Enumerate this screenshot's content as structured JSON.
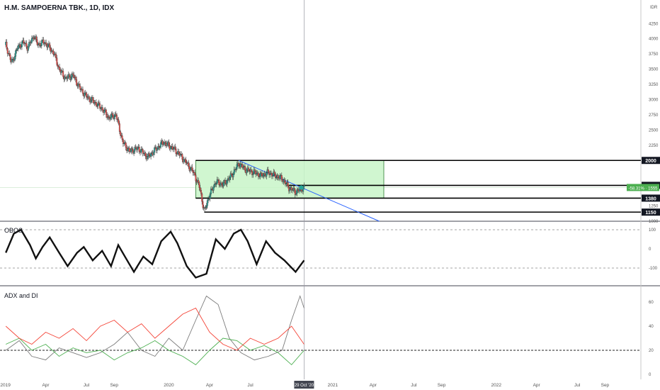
{
  "header": {
    "title": "H.M. SAMPOERNA TBK., 1D, IDX"
  },
  "colors": {
    "candle_up": "#26a69a",
    "candle_down": "#ef5350",
    "zone_fill": "#c8f5c8",
    "zone_border": "#2e7d32",
    "trendline": "#2962ff",
    "adx": "#7b7b7b",
    "di_plus": "#4caf50",
    "di_minus": "#f44336",
    "price_badge": "#4caf50"
  },
  "chart_data": [
    {
      "type": "candlestick",
      "title": "H.M. SAMPOERNA TBK., 1D, IDX",
      "currency_label": "IDR",
      "ylim": [
        1000,
        4300
      ],
      "y_ticks": [
        "4250",
        "4000",
        "3750",
        "3500",
        "3250",
        "3000",
        "2750",
        "2500",
        "2250",
        "1250",
        "1000"
      ],
      "x_ticks": [
        "2019",
        "Apr",
        "Jul",
        "Sep",
        "2020",
        "Apr",
        "Jul",
        "Oct",
        "2021",
        "Apr",
        "Jul",
        "Sep",
        "2022",
        "Apr",
        "Jul",
        "Sep"
      ],
      "cursor_date_label": "29 Oct '20",
      "price_path": [
        [
          "2019-01-02",
          3900
        ],
        [
          "2019-01-15",
          3600
        ],
        [
          "2019-01-28",
          3850
        ],
        [
          "2019-02-10",
          3950
        ],
        [
          "2019-02-20",
          3850
        ],
        [
          "2019-03-05",
          4050
        ],
        [
          "2019-03-15",
          3900
        ],
        [
          "2019-03-28",
          3950
        ],
        [
          "2019-04-10",
          3850
        ],
        [
          "2019-04-20",
          3750
        ],
        [
          "2019-05-01",
          3500
        ],
        [
          "2019-05-15",
          3350
        ],
        [
          "2019-06-01",
          3400
        ],
        [
          "2019-06-15",
          3200
        ],
        [
          "2019-07-01",
          3050
        ],
        [
          "2019-07-20",
          2950
        ],
        [
          "2019-08-05",
          2850
        ],
        [
          "2019-08-20",
          2700
        ],
        [
          "2019-09-05",
          2750
        ],
        [
          "2019-09-20",
          2300
        ],
        [
          "2019-10-05",
          2150
        ],
        [
          "2019-10-25",
          2200
        ],
        [
          "2019-11-15",
          2050
        ],
        [
          "2019-12-05",
          2200
        ],
        [
          "2019-12-20",
          2300
        ],
        [
          "2020-01-10",
          2200
        ],
        [
          "2020-01-25",
          2100
        ],
        [
          "2020-02-10",
          1950
        ],
        [
          "2020-02-25",
          1800
        ],
        [
          "2020-03-10",
          1550
        ],
        [
          "2020-03-20",
          1150
        ],
        [
          "2020-03-30",
          1400
        ],
        [
          "2020-04-15",
          1650
        ],
        [
          "2020-05-01",
          1600
        ],
        [
          "2020-05-20",
          1750
        ],
        [
          "2020-06-05",
          1950
        ],
        [
          "2020-06-20",
          1850
        ],
        [
          "2020-07-10",
          1800
        ],
        [
          "2020-07-25",
          1750
        ],
        [
          "2020-08-10",
          1800
        ],
        [
          "2020-08-25",
          1750
        ],
        [
          "2020-09-10",
          1700
        ],
        [
          "2020-09-25",
          1550
        ],
        [
          "2020-10-10",
          1480
        ],
        [
          "2020-10-29",
          1555
        ]
      ],
      "levels": [
        {
          "value": 2000,
          "label": "2000"
        },
        {
          "value": 1590,
          "label": "1590"
        },
        {
          "value": 1380,
          "label": "1380"
        },
        {
          "value": 1150,
          "label": "1150"
        }
      ],
      "zone": {
        "start": "2020-03-01",
        "end": "2021-04-25",
        "top": 2000,
        "bottom": 1380
      },
      "trendline": {
        "start": [
          "2020-06-05",
          2000
        ],
        "end": [
          "2021-04-15",
          1000
        ]
      },
      "current_price": {
        "value": 1555,
        "label": "1555",
        "change_label": "-58.31%"
      },
      "axis_extra_label": "1250"
    },
    {
      "type": "line",
      "title": "OBOS",
      "ylim": [
        -180,
        130
      ],
      "y_ticks": [
        "100",
        "0",
        "-100"
      ],
      "reference_lines": [
        100,
        -100
      ],
      "series": [
        {
          "values": [
            [
              "2019-01-02",
              -20
            ],
            [
              "2019-01-20",
              80
            ],
            [
              "2019-02-05",
              100
            ],
            [
              "2019-02-25",
              20
            ],
            [
              "2019-03-10",
              -50
            ],
            [
              "2019-03-25",
              10
            ],
            [
              "2019-04-10",
              60
            ],
            [
              "2019-05-01",
              -20
            ],
            [
              "2019-05-20",
              -90
            ],
            [
              "2019-06-10",
              -20
            ],
            [
              "2019-06-25",
              10
            ],
            [
              "2019-07-15",
              -60
            ],
            [
              "2019-08-05",
              -10
            ],
            [
              "2019-08-25",
              -90
            ],
            [
              "2019-09-10",
              20
            ],
            [
              "2019-09-25",
              -40
            ],
            [
              "2019-10-15",
              -120
            ],
            [
              "2019-11-05",
              -40
            ],
            [
              "2019-11-25",
              -80
            ],
            [
              "2019-12-15",
              40
            ],
            [
              "2020-01-05",
              90
            ],
            [
              "2020-01-20",
              30
            ],
            [
              "2020-02-10",
              -90
            ],
            [
              "2020-03-01",
              -150
            ],
            [
              "2020-03-25",
              -130
            ],
            [
              "2020-04-15",
              50
            ],
            [
              "2020-05-05",
              0
            ],
            [
              "2020-05-25",
              80
            ],
            [
              "2020-06-10",
              100
            ],
            [
              "2020-06-25",
              40
            ],
            [
              "2020-07-15",
              -80
            ],
            [
              "2020-08-05",
              40
            ],
            [
              "2020-08-25",
              -20
            ],
            [
              "2020-09-15",
              -60
            ],
            [
              "2020-10-10",
              -120
            ],
            [
              "2020-10-29",
              -60
            ]
          ]
        }
      ]
    },
    {
      "type": "line",
      "title": "ADX and DI",
      "ylim": [
        -2,
        75
      ],
      "y_ticks": [
        "60",
        "40",
        "20",
        "0"
      ],
      "reference_lines": [
        20
      ],
      "series": [
        {
          "key": "adx",
          "values": [
            [
              "2019-01-02",
              20
            ],
            [
              "2019-02-01",
              28
            ],
            [
              "2019-03-01",
              15
            ],
            [
              "2019-04-01",
              12
            ],
            [
              "2019-05-01",
              22
            ],
            [
              "2019-06-01",
              18
            ],
            [
              "2019-07-01",
              14
            ],
            [
              "2019-08-01",
              18
            ],
            [
              "2019-09-01",
              25
            ],
            [
              "2019-10-01",
              35
            ],
            [
              "2019-11-01",
              20
            ],
            [
              "2019-12-01",
              15
            ],
            [
              "2020-01-01",
              30
            ],
            [
              "2020-02-01",
              20
            ],
            [
              "2020-03-01",
              45
            ],
            [
              "2020-03-25",
              65
            ],
            [
              "2020-04-20",
              58
            ],
            [
              "2020-05-15",
              30
            ],
            [
              "2020-06-10",
              18
            ],
            [
              "2020-07-10",
              12
            ],
            [
              "2020-08-10",
              15
            ],
            [
              "2020-09-10",
              20
            ],
            [
              "2020-10-01",
              45
            ],
            [
              "2020-10-20",
              65
            ],
            [
              "2020-10-29",
              55
            ]
          ]
        },
        {
          "key": "di_plus",
          "values": [
            [
              "2019-01-02",
              25
            ],
            [
              "2019-02-01",
              30
            ],
            [
              "2019-03-01",
              20
            ],
            [
              "2019-04-01",
              25
            ],
            [
              "2019-05-01",
              15
            ],
            [
              "2019-06-01",
              22
            ],
            [
              "2019-07-01",
              18
            ],
            [
              "2019-08-01",
              20
            ],
            [
              "2019-09-01",
              12
            ],
            [
              "2019-10-01",
              18
            ],
            [
              "2019-11-01",
              22
            ],
            [
              "2019-12-01",
              28
            ],
            [
              "2020-01-01",
              20
            ],
            [
              "2020-02-01",
              15
            ],
            [
              "2020-03-01",
              8
            ],
            [
              "2020-04-01",
              20
            ],
            [
              "2020-05-01",
              30
            ],
            [
              "2020-06-01",
              28
            ],
            [
              "2020-07-01",
              20
            ],
            [
              "2020-08-01",
              24
            ],
            [
              "2020-09-01",
              18
            ],
            [
              "2020-10-01",
              8
            ],
            [
              "2020-10-29",
              20
            ]
          ]
        },
        {
          "key": "di_minus",
          "values": [
            [
              "2019-01-02",
              40
            ],
            [
              "2019-02-01",
              30
            ],
            [
              "2019-03-01",
              25
            ],
            [
              "2019-04-01",
              35
            ],
            [
              "2019-05-01",
              30
            ],
            [
              "2019-06-01",
              38
            ],
            [
              "2019-07-01",
              28
            ],
            [
              "2019-08-01",
              40
            ],
            [
              "2019-09-01",
              45
            ],
            [
              "2019-10-01",
              35
            ],
            [
              "2019-11-01",
              42
            ],
            [
              "2019-12-01",
              30
            ],
            [
              "2020-01-01",
              40
            ],
            [
              "2020-02-01",
              50
            ],
            [
              "2020-03-01",
              55
            ],
            [
              "2020-04-01",
              35
            ],
            [
              "2020-05-01",
              25
            ],
            [
              "2020-06-01",
              20
            ],
            [
              "2020-07-01",
              30
            ],
            [
              "2020-08-01",
              25
            ],
            [
              "2020-09-01",
              30
            ],
            [
              "2020-10-01",
              40
            ],
            [
              "2020-10-29",
              25
            ]
          ]
        }
      ]
    }
  ]
}
